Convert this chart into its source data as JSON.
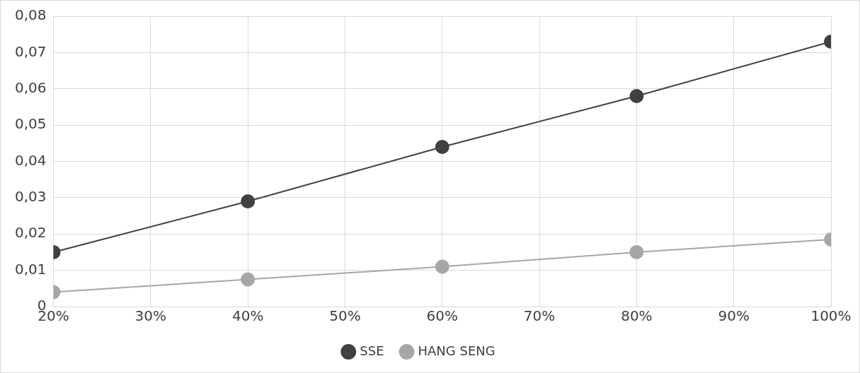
{
  "chart_data": {
    "type": "line",
    "x": [
      20,
      40,
      60,
      80,
      100
    ],
    "series": [
      {
        "name": "SSE",
        "color": "#404040",
        "values": [
          0.015,
          0.029,
          0.044,
          0.058,
          0.073
        ]
      },
      {
        "name": "HANG SENG",
        "color": "#a6a6a6",
        "values": [
          0.004,
          0.0075,
          0.011,
          0.015,
          0.0185
        ]
      }
    ],
    "xlim": [
      20,
      100
    ],
    "xticks": [
      {
        "value": 20,
        "label": "20%"
      },
      {
        "value": 30,
        "label": "30%"
      },
      {
        "value": 40,
        "label": "40%"
      },
      {
        "value": 50,
        "label": "50%"
      },
      {
        "value": 60,
        "label": "60%"
      },
      {
        "value": 70,
        "label": "70%"
      },
      {
        "value": 80,
        "label": "80%"
      },
      {
        "value": 90,
        "label": "90%"
      },
      {
        "value": 100,
        "label": "100%"
      }
    ],
    "ylim": [
      0,
      0.08
    ],
    "yticks": [
      {
        "value": 0,
        "label": "0"
      },
      {
        "value": 0.01,
        "label": "0,01"
      },
      {
        "value": 0.02,
        "label": "0,02"
      },
      {
        "value": 0.03,
        "label": "0,03"
      },
      {
        "value": 0.04,
        "label": "0,04"
      },
      {
        "value": 0.05,
        "label": "0,05"
      },
      {
        "value": 0.06,
        "label": "0,06"
      },
      {
        "value": 0.07,
        "label": "0,07"
      },
      {
        "value": 0.08,
        "label": "0,08"
      }
    ],
    "grid": true,
    "legend": "bottom",
    "marker": "circle",
    "line_style": "solid"
  }
}
